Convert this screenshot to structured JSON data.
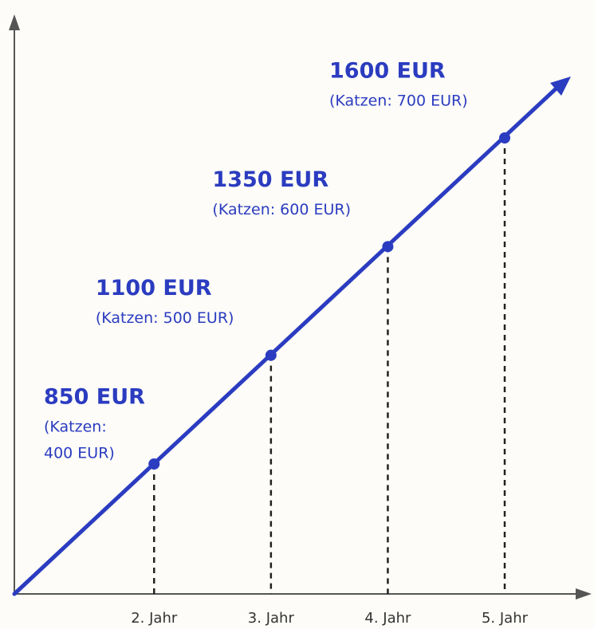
{
  "chart_data": {
    "type": "line",
    "categories": [
      "2. Jahr",
      "3. Jahr",
      "4. Jahr",
      "5. Jahr"
    ],
    "values": [
      850,
      1100,
      1350,
      1600
    ],
    "value_labels": [
      "850 EUR",
      "1100 EUR",
      "1350 EUR",
      "1600 EUR"
    ],
    "annotations": [
      [
        "(Katzen:",
        "400 EUR)"
      ],
      [
        "(Katzen: 500 EUR)"
      ],
      [
        "(Katzen: 600 EUR)"
      ],
      [
        "(Katzen: 700 EUR)"
      ]
    ],
    "color": "#2b3cc0"
  }
}
